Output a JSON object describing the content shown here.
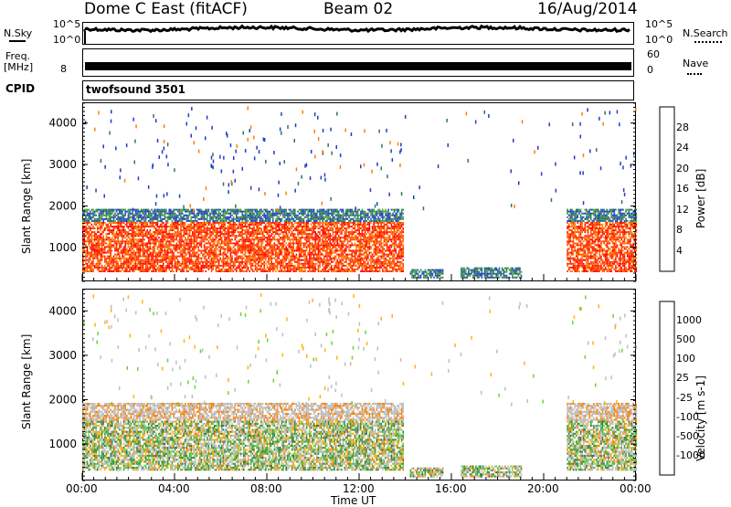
{
  "header": {
    "station": "Dome C East (fitACF)",
    "beam": "Beam 02",
    "date": "16/Aug/2014"
  },
  "strips": {
    "nsky_label": "N.Sky",
    "nsky_tick_top": "10^5",
    "nsky_tick_bottom": "10^0",
    "nsearch_label": "N.Search",
    "nsearch_tick_top": "10^5",
    "nsearch_tick_bottom": "10^0",
    "freq_label": "Freq.",
    "freq_unit": "[MHz]",
    "freq_tick": "8",
    "nave_label": "Nave",
    "nave_tick_top": "60",
    "nave_tick_bottom": "0",
    "cpid_label": "CPID",
    "cpid_value": "twofsound 3501"
  },
  "chart_data": [
    {
      "type": "heatmap",
      "title": "",
      "xlabel": "Time UT",
      "ylabel": "Slant Range [km]",
      "xticks": [
        "00:00",
        "04:00",
        "08:00",
        "12:00",
        "16:00",
        "20:00",
        "00:00"
      ],
      "xlim": [
        0,
        24
      ],
      "ylim": [
        180,
        4500
      ],
      "yticks": [
        "1000",
        "2000",
        "3000",
        "4000"
      ],
      "colorbar": {
        "label": "Power [dB]",
        "ticks": [
          "28",
          "24",
          "20",
          "16",
          "12",
          "8",
          "4"
        ],
        "colors": [
          "#ff0000",
          "#ff4000",
          "#ff8000",
          "#ffb300",
          "#ffe600",
          "#9be64b",
          "#3ca03c",
          "#2d7850",
          "#1e5aa0",
          "#1e3cc8",
          "#0000ff"
        ]
      },
      "regions": [
        {
          "t0": 0.0,
          "t1": 13.9,
          "r0": 400,
          "r1": 1900,
          "level": "high"
        },
        {
          "t0": 21.0,
          "t1": 24.0,
          "r0": 400,
          "r1": 1900,
          "level": "high"
        },
        {
          "t0": 14.2,
          "t1": 15.6,
          "r0": 250,
          "r1": 450,
          "level": "mid"
        },
        {
          "t0": 16.4,
          "t1": 19.0,
          "r0": 250,
          "r1": 520,
          "level": "mid"
        }
      ]
    },
    {
      "type": "heatmap",
      "title": "",
      "xlabel": "Time UT",
      "ylabel": "Slant Range [km]",
      "xticks": [
        "00:00",
        "04:00",
        "08:00",
        "12:00",
        "16:00",
        "20:00",
        "00:00"
      ],
      "xlim": [
        0,
        24
      ],
      "ylim": [
        180,
        4500
      ],
      "yticks": [
        "1000",
        "2000",
        "3000",
        "4000"
      ],
      "colorbar": {
        "label": "Velocity [m s-1]",
        "ticks": [
          "1000",
          "500",
          "100",
          "25",
          "-25",
          "-100",
          "-500",
          "-1000"
        ],
        "colors": [
          "#1e3cc8",
          "#2d5aa0",
          "#2d7850",
          "#3ca03c",
          "#6cd23c",
          "#bebebe",
          "#bebebe",
          "#ffb300",
          "#ff8000",
          "#ff4000",
          "#ff0000"
        ]
      },
      "regions": [
        {
          "t0": 0.0,
          "t1": 13.9,
          "r0": 400,
          "r1": 1900,
          "level": "mixed"
        },
        {
          "t0": 21.0,
          "t1": 24.0,
          "r0": 400,
          "r1": 1900,
          "level": "mixed"
        },
        {
          "t0": 14.2,
          "t1": 15.6,
          "r0": 250,
          "r1": 450,
          "level": "mixed"
        },
        {
          "t0": 16.4,
          "t1": 19.0,
          "r0": 250,
          "r1": 520,
          "level": "mixed"
        }
      ]
    }
  ]
}
